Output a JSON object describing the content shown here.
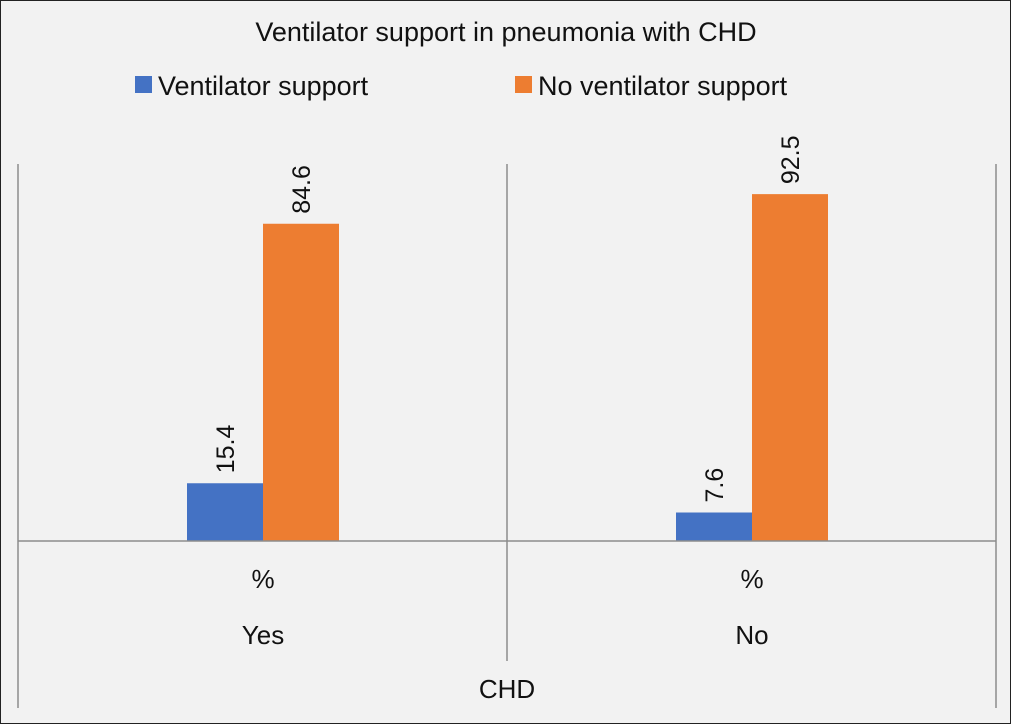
{
  "chart_data": {
    "type": "bar",
    "title": "Ventilator support in pneumonia with CHD",
    "categories": [
      "Yes",
      "No"
    ],
    "sub_categories": [
      "%",
      "%"
    ],
    "xlabel": "CHD",
    "ylabel": "",
    "ylim": [
      0,
      100
    ],
    "grid": false,
    "legend_position": "top",
    "series": [
      {
        "name": "Ventilator support",
        "color": "#4472c4",
        "values": [
          15.4,
          7.6
        ],
        "labels": [
          "15.4",
          "7.6"
        ]
      },
      {
        "name": "No ventilator support",
        "color": "#ed7d31",
        "values": [
          84.6,
          92.5
        ],
        "labels": [
          "84.6",
          "92.5"
        ]
      }
    ]
  }
}
